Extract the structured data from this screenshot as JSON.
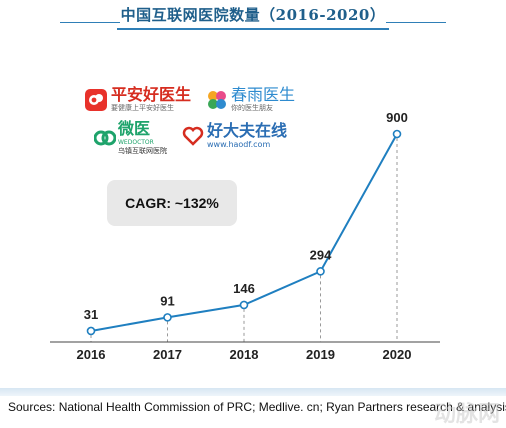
{
  "title": "中国互联网医院数量（2016-2020）",
  "logos": [
    {
      "name": "平安好医生",
      "sub": "要健康上平安好医生",
      "color": "#e8322b"
    },
    {
      "name": "春雨医生",
      "sub": "你的医生朋友",
      "color": "#2e8bcf"
    },
    {
      "name": "微医",
      "sub": "乌镇互联网医院",
      "badge": "WEDOCTOR",
      "color": "#1ea36b"
    },
    {
      "name": "好大夫在线",
      "sub": "www.haodf.com",
      "color": "#2a6db3"
    }
  ],
  "cagr": "CAGR: ~132%",
  "chart_data": {
    "type": "line",
    "categories": [
      "2016",
      "2017",
      "2018",
      "2019",
      "2020"
    ],
    "values": [
      31,
      91,
      146,
      294,
      900
    ],
    "data_labels": [
      "31",
      "91",
      "146",
      "294",
      "900"
    ],
    "ylim": [
      0,
      900
    ],
    "grid": false,
    "line_color": "#1f7fc0"
  },
  "source": "Sources: National Health Commission of PRC; Medlive. cn; Ryan Partners research & analysis",
  "watermark": "动脉网"
}
